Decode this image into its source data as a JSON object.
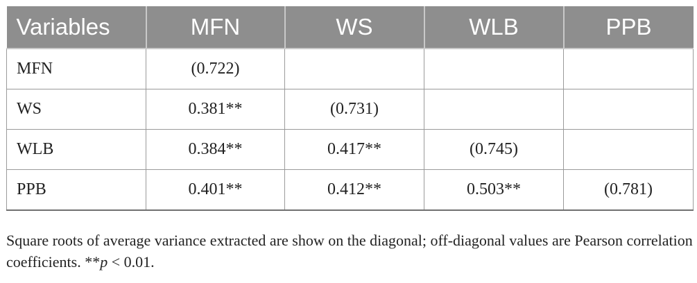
{
  "table": {
    "headers": [
      "Variables",
      "MFN",
      "WS",
      "WLB",
      "PPB"
    ],
    "rows": [
      {
        "label": "MFN",
        "cells": [
          "(0.722)",
          "",
          "",
          ""
        ]
      },
      {
        "label": "WS",
        "cells": [
          "0.381**",
          "(0.731)",
          "",
          ""
        ]
      },
      {
        "label": "WLB",
        "cells": [
          "0.384**",
          "0.417**",
          "(0.745)",
          ""
        ]
      },
      {
        "label": "PPB",
        "cells": [
          "0.401**",
          "0.412**",
          "0.503**",
          "(0.781)"
        ]
      }
    ]
  },
  "note": {
    "text": "Square roots of average variance extracted are show on the diagonal; off-diagonal values are Pearson correlation coefficients. **",
    "p_symbol": "p",
    "p_condition": " < 0.01."
  },
  "colors": {
    "header_bg": "#8e8e8e",
    "header_text": "#ffffff",
    "grid": "#9a9a9a"
  }
}
